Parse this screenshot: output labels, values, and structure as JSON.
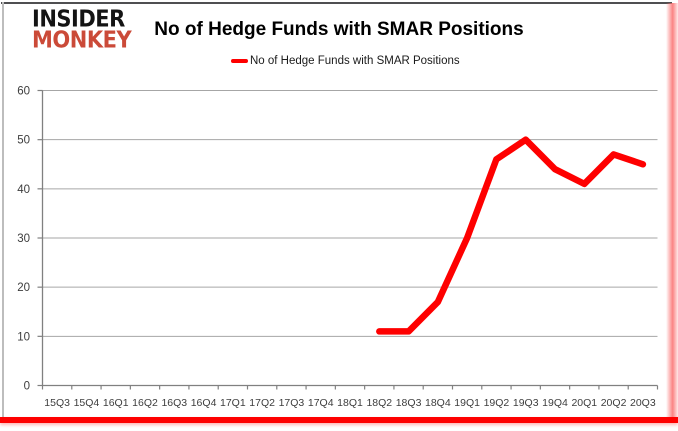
{
  "branding": {
    "logo_line1": "INSIDER",
    "logo_line2": "MONKEY",
    "logo_text_color": "#141414",
    "logo_accent_color": "#cb4a38"
  },
  "header": {
    "title": "No of Hedge Funds with SMAR Positions"
  },
  "legend": {
    "label": "No of Hedge Funds with SMAR Positions",
    "swatch_color": "#fe0000"
  },
  "chart_data": {
    "type": "line",
    "title": "No of Hedge Funds with SMAR Positions",
    "categories": [
      "15Q3",
      "15Q4",
      "16Q1",
      "16Q2",
      "16Q3",
      "16Q4",
      "17Q1",
      "17Q2",
      "17Q3",
      "17Q4",
      "18Q1",
      "18Q2",
      "18Q3",
      "18Q4",
      "19Q1",
      "19Q2",
      "19Q3",
      "19Q4",
      "20Q1",
      "20Q2",
      "20Q3"
    ],
    "series": [
      {
        "name": "No of Hedge Funds with SMAR Positions",
        "color": "#fe0000",
        "values": [
          null,
          null,
          null,
          null,
          null,
          null,
          null,
          null,
          null,
          null,
          null,
          11,
          11,
          17,
          30,
          46,
          50,
          44,
          41,
          47,
          45
        ]
      }
    ],
    "xlabel": "",
    "ylabel": "",
    "ylim": [
      0,
      60
    ],
    "yticks": [
      0,
      10,
      20,
      30,
      40,
      50,
      60
    ],
    "grid": true,
    "legend_position": "top-center",
    "grid_color": "#a6a6a6",
    "axis_color": "#808080",
    "tick_label_color": "#3d3d3d"
  }
}
